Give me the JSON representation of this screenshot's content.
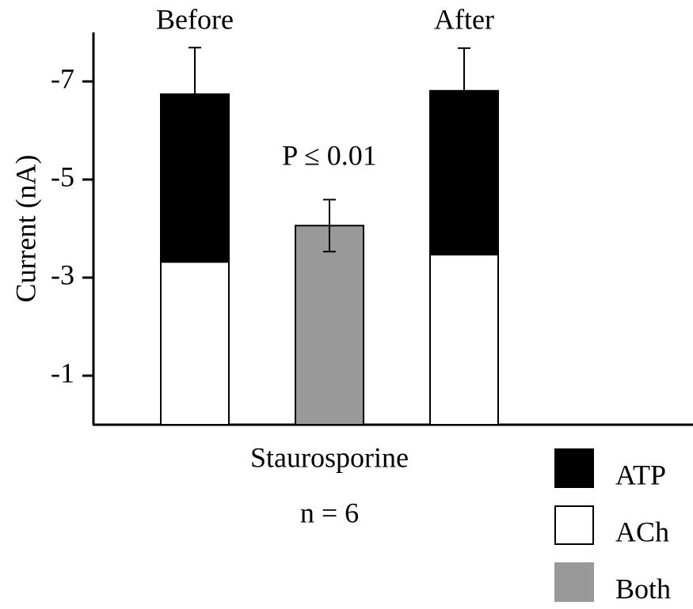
{
  "chart_data": {
    "type": "stacked_bar",
    "categories": [
      "Before",
      null,
      "After"
    ],
    "annotation": "P ≤ 0.01",
    "xlabel": [
      "Staurosporine",
      "n = 6"
    ],
    "ylabel": "Current (nA)",
    "ylim": [
      0,
      -8
    ],
    "yticks": [
      -1,
      -3,
      -5,
      -7
    ],
    "series": [
      {
        "name": "ATP",
        "color": "#000000",
        "values": [
          -3.42,
          null,
          -3.34
        ],
        "errors": [
          0.95,
          null,
          0.87
        ]
      },
      {
        "name": "ACh",
        "color": "#ffffff",
        "values": [
          -3.32,
          null,
          -3.47
        ]
      },
      {
        "name": "Both",
        "color": "#999999",
        "values": [
          null,
          -4.06,
          null
        ],
        "errors": [
          null,
          0.53,
          null
        ]
      }
    ]
  }
}
